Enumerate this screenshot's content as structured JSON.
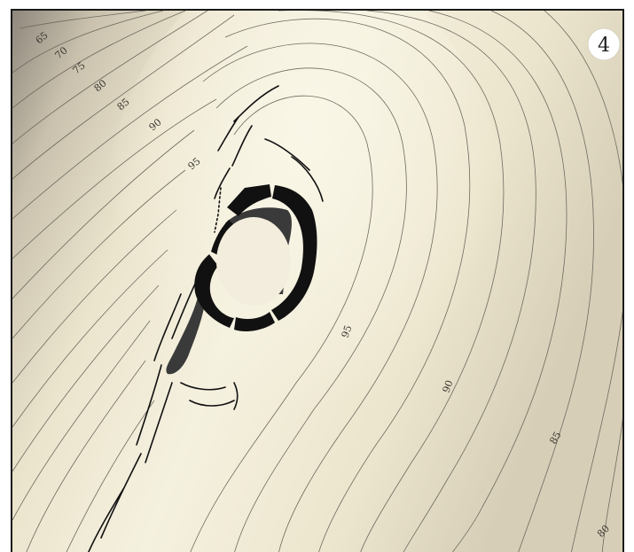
{
  "map": {
    "plate_number": "4",
    "contour_labels": [
      "65",
      "70",
      "75",
      "80",
      "85",
      "90",
      "95",
      "95",
      "90",
      "85",
      "80"
    ]
  },
  "colors": {
    "terrain_low": "#9e968a",
    "terrain_high": "#f4f0de",
    "contour": "#6e6a60",
    "wall": "#111111",
    "collapse": "#3a3a3a",
    "frame": "#1a1a1a"
  }
}
